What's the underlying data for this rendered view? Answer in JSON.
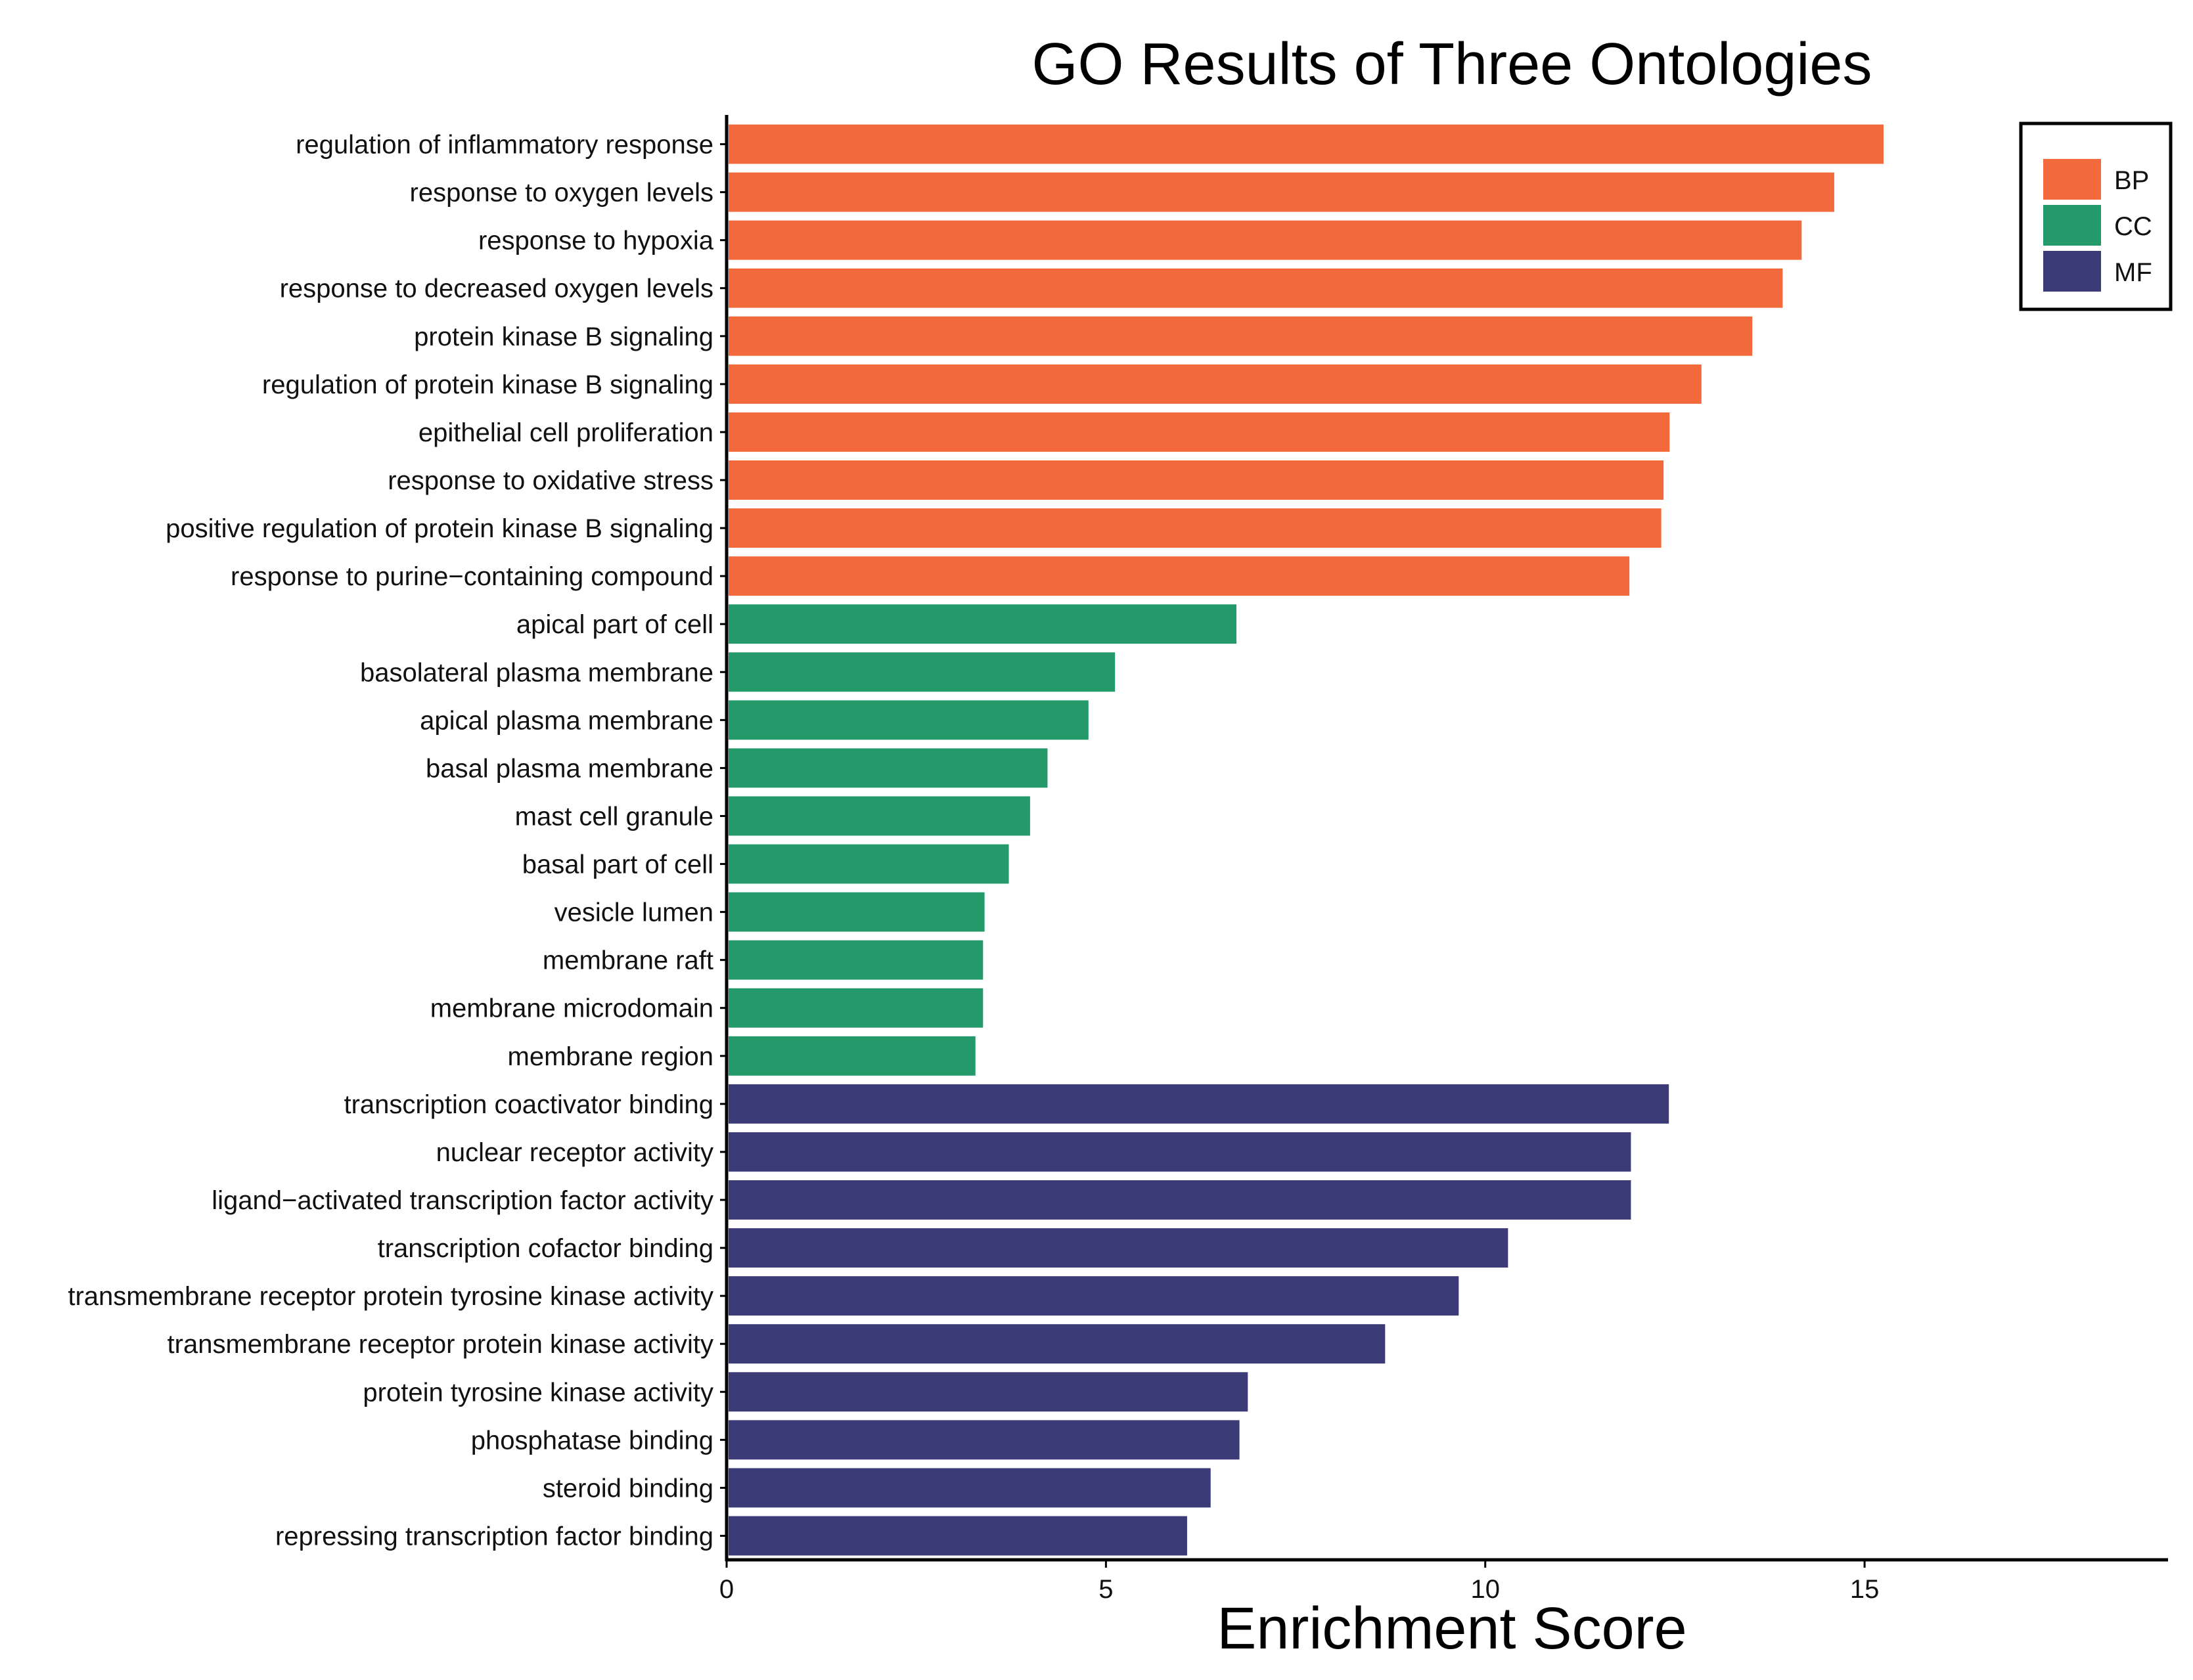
{
  "chart_data": {
    "type": "bar",
    "orientation": "horizontal",
    "title": "GO Results of Three Ontologies",
    "xlabel": "Enrichment Score",
    "ylabel": "",
    "xlim": [
      0,
      19
    ],
    "xticks": [
      0,
      5,
      10,
      15
    ],
    "grid": false,
    "legend": {
      "position": "top-right",
      "entries": [
        {
          "name": "BP",
          "color": "#F26A3B"
        },
        {
          "name": "CC",
          "color": "#249A6B"
        },
        {
          "name": "MF",
          "color": "#3B3B78"
        }
      ]
    },
    "categories": [
      "regulation of inflammatory response",
      "response to oxygen levels",
      "response to hypoxia",
      "response to decreased oxygen levels",
      "protein kinase B signaling",
      "regulation of protein kinase B signaling",
      "epithelial cell proliferation",
      "response to oxidative stress",
      "positive regulation of protein kinase B signaling",
      "response to purine−containing compound",
      "apical part of cell",
      "basolateral plasma membrane",
      "apical plasma membrane",
      "basal plasma membrane",
      "mast cell granule",
      "basal part of cell",
      "vesicle lumen",
      "membrane raft",
      "membrane microdomain",
      "membrane region",
      "transcription coactivator binding",
      "nuclear receptor activity",
      "ligand−activated transcription factor activity",
      "transcription cofactor binding",
      "transmembrane receptor protein tyrosine kinase activity",
      "transmembrane receptor protein kinase activity",
      "protein tyrosine kinase activity",
      "phosphatase binding",
      "steroid binding",
      "repressing transcription factor binding"
    ],
    "values": [
      15.25,
      14.6,
      14.17,
      13.92,
      13.52,
      12.85,
      12.43,
      12.35,
      12.32,
      11.9,
      6.72,
      5.12,
      4.77,
      4.23,
      4.0,
      3.72,
      3.4,
      3.38,
      3.38,
      3.28,
      12.42,
      11.92,
      11.92,
      10.3,
      9.65,
      8.68,
      6.87,
      6.76,
      6.38,
      6.07
    ],
    "groups": [
      "BP",
      "BP",
      "BP",
      "BP",
      "BP",
      "BP",
      "BP",
      "BP",
      "BP",
      "BP",
      "CC",
      "CC",
      "CC",
      "CC",
      "CC",
      "CC",
      "CC",
      "CC",
      "CC",
      "CC",
      "MF",
      "MF",
      "MF",
      "MF",
      "MF",
      "MF",
      "MF",
      "MF",
      "MF",
      "MF"
    ]
  }
}
